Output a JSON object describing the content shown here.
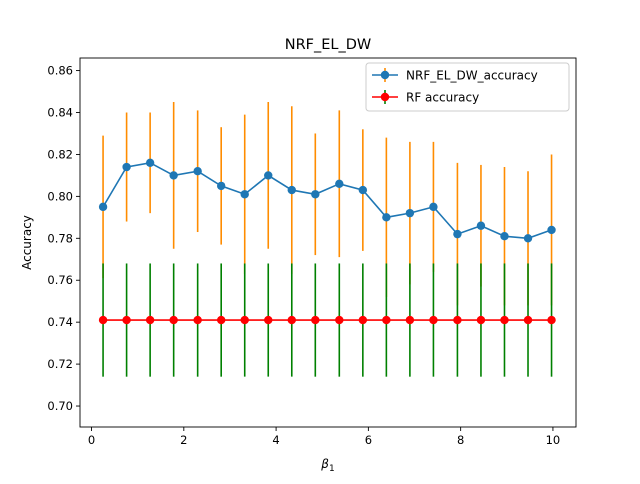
{
  "chart_data": {
    "type": "line",
    "title": "NRF_EL_DW",
    "xlabel": "β",
    "xlabel_subscript": "1",
    "ylabel": "Accuracy",
    "xlim": [
      -0.25,
      10.5
    ],
    "ylim": [
      0.69,
      0.866
    ],
    "x_ticks": [
      0,
      2,
      4,
      6,
      8,
      10
    ],
    "y_ticks": [
      0.7,
      0.72,
      0.74,
      0.76,
      0.78,
      0.8,
      0.82,
      0.84,
      0.86
    ],
    "x_tick_labels": [
      "0",
      "2",
      "4",
      "6",
      "8",
      "10"
    ],
    "y_tick_labels": [
      "0.70",
      "0.72",
      "0.74",
      "0.76",
      "0.78",
      "0.80",
      "0.82",
      "0.84",
      "0.86"
    ],
    "legend_position": "upper right",
    "x": [
      0.25,
      0.76,
      1.27,
      1.78,
      2.3,
      2.81,
      3.32,
      3.83,
      4.34,
      4.85,
      5.37,
      5.88,
      6.39,
      6.9,
      7.41,
      7.93,
      8.44,
      8.95,
      9.46,
      9.97
    ],
    "series": [
      {
        "name": "NRF_EL_DW_accuracy",
        "color": "#1f77b4",
        "error_color": "#ff8c00",
        "values": [
          0.795,
          0.814,
          0.816,
          0.81,
          0.812,
          0.805,
          0.801,
          0.81,
          0.803,
          0.801,
          0.806,
          0.803,
          0.79,
          0.792,
          0.795,
          0.782,
          0.786,
          0.781,
          0.78,
          0.784
        ],
        "errors": [
          0.034,
          0.026,
          0.024,
          0.035,
          0.029,
          0.028,
          0.038,
          0.035,
          0.04,
          0.029,
          0.035,
          0.029,
          0.038,
          0.034,
          0.031,
          0.034,
          0.029,
          0.033,
          0.032,
          0.036
        ]
      },
      {
        "name": "RF accuracy",
        "color": "#ff0000",
        "error_color": "#008000",
        "values": [
          0.741,
          0.741,
          0.741,
          0.741,
          0.741,
          0.741,
          0.741,
          0.741,
          0.741,
          0.741,
          0.741,
          0.741,
          0.741,
          0.741,
          0.741,
          0.741,
          0.741,
          0.741,
          0.741,
          0.741
        ],
        "errors": [
          0.027,
          0.027,
          0.027,
          0.027,
          0.027,
          0.027,
          0.027,
          0.027,
          0.027,
          0.027,
          0.027,
          0.027,
          0.027,
          0.027,
          0.027,
          0.027,
          0.027,
          0.027,
          0.027,
          0.027
        ]
      }
    ]
  }
}
